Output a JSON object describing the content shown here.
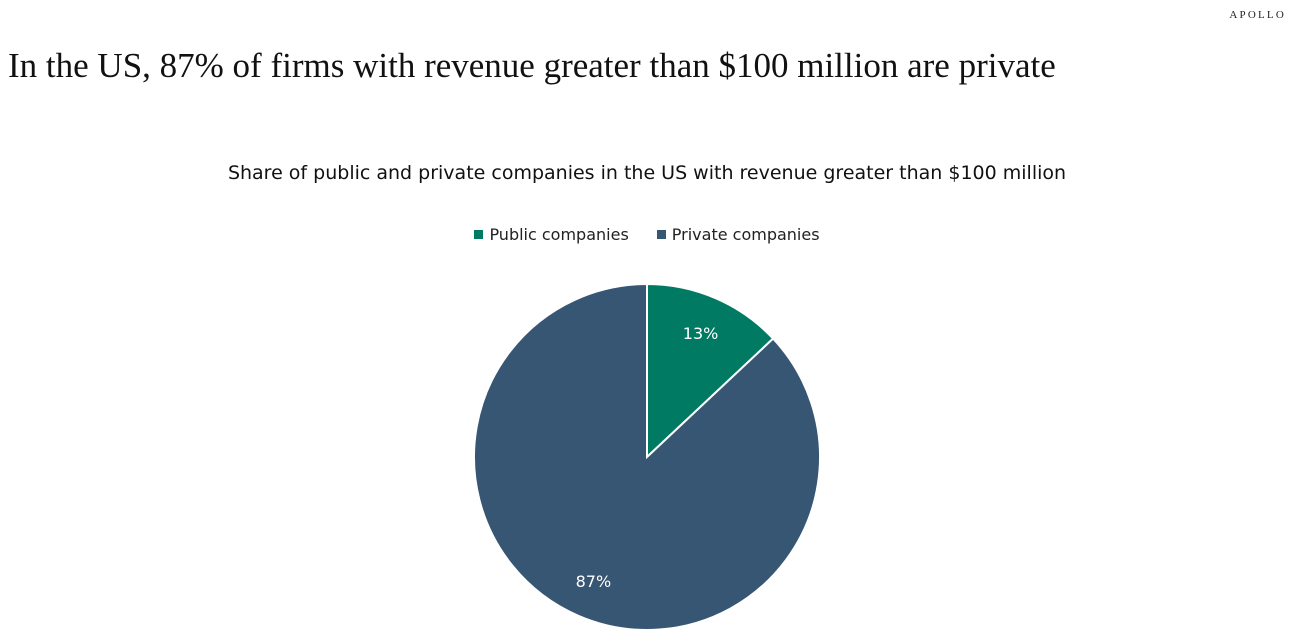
{
  "brand": "APOLLO",
  "headline": "In the US, 87% of firms with revenue greater than $100 million are private",
  "chart_data": {
    "type": "pie",
    "title": "Share of public and private companies in the US with revenue greater than $100 million",
    "legend_position": "top",
    "series": [
      {
        "name": "Public companies",
        "value": 13,
        "label": "13%",
        "color": "#007A63"
      },
      {
        "name": "Private companies",
        "value": 87,
        "label": "87%",
        "color": "#375673"
      }
    ]
  }
}
